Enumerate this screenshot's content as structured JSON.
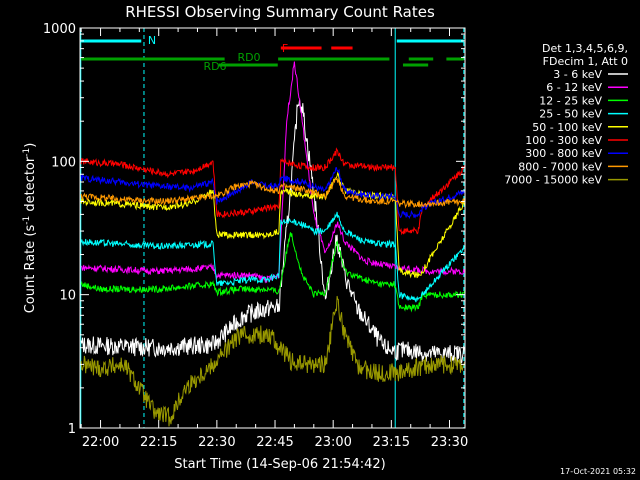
{
  "chart_data": {
    "type": "line",
    "title": "RHESSI Observing Summary Count Rates",
    "xlabel": "Start Time (14-Sep-06 21:54:42)",
    "ylabel_main": "Count Rate (s",
    "ylabel_sup1": "-1",
    "ylabel_mid": " detector",
    "ylabel_sup2": "-1",
    "ylabel_end": ")",
    "y_scale": "log",
    "ylim": [
      1,
      1000
    ],
    "xlim_min": [
      1314.7,
      1414.0
    ],
    "x_ticks": [
      {
        "min": 1320,
        "label": "22:00"
      },
      {
        "min": 1335,
        "label": "22:15"
      },
      {
        "min": 1350,
        "label": "22:30"
      },
      {
        "min": 1365,
        "label": "22:45"
      },
      {
        "min": 1380,
        "label": "23:00"
      },
      {
        "min": 1395,
        "label": "23:15"
      },
      {
        "min": 1410,
        "label": "23:30"
      }
    ],
    "y_ticks": [
      {
        "value": 1,
        "label": "1"
      },
      {
        "value": 10,
        "label": "10"
      },
      {
        "value": 100,
        "label": "100"
      },
      {
        "value": 1000,
        "label": "1000"
      }
    ],
    "legend_position": "right",
    "legend_header": [
      "Det 1,3,4,5,6,9,",
      "FDecim 1, Att 0"
    ],
    "footer_date": "17-Oct-2021 05:32",
    "flags": [
      {
        "label": "N",
        "color": "#00ffff"
      },
      {
        "label": "RD0",
        "color": "#00a000"
      },
      {
        "label": "RD6",
        "color": "#00a000"
      },
      {
        "label": "F",
        "color": "#ff0000"
      }
    ],
    "night_boundaries_min": [
      1314.9,
      1331.2,
      1396.0,
      1413.7
    ],
    "series": [
      {
        "name": "3 - 6 keV",
        "color": "#ffffff",
        "points": [
          [
            1315,
            4.2
          ],
          [
            1335,
            4.0
          ],
          [
            1349,
            4.2
          ],
          [
            1357,
            7.0
          ],
          [
            1364,
            8.0
          ],
          [
            1366,
            8.0
          ],
          [
            1369,
            60
          ],
          [
            1371,
            300
          ],
          [
            1372,
            260
          ],
          [
            1375,
            60
          ],
          [
            1378,
            9
          ],
          [
            1380,
            20
          ],
          [
            1381,
            26
          ],
          [
            1383,
            14
          ],
          [
            1386,
            8
          ],
          [
            1389,
            6
          ],
          [
            1393,
            4
          ],
          [
            1396,
            3.8
          ],
          [
            1400,
            3.8
          ],
          [
            1405,
            3.6
          ],
          [
            1414,
            3.6
          ]
        ]
      },
      {
        "name": "6 - 12 keV",
        "color": "#ff00ff",
        "points": [
          [
            1315,
            16
          ],
          [
            1335,
            15
          ],
          [
            1349,
            16
          ],
          [
            1350,
            14
          ],
          [
            1359,
            14
          ],
          [
            1363,
            13
          ],
          [
            1366,
            14
          ],
          [
            1368,
            200
          ],
          [
            1370,
            560
          ],
          [
            1372,
            200
          ],
          [
            1375,
            40
          ],
          [
            1378,
            20
          ],
          [
            1380,
            28
          ],
          [
            1381,
            35
          ],
          [
            1383,
            25
          ],
          [
            1388,
            18
          ],
          [
            1392,
            17
          ],
          [
            1396,
            16
          ],
          [
            1405,
            15
          ],
          [
            1414,
            15
          ]
        ]
      },
      {
        "name": "12 - 25 keV",
        "color": "#00ff00",
        "points": [
          [
            1315,
            12
          ],
          [
            1320,
            11
          ],
          [
            1335,
            11
          ],
          [
            1349,
            12
          ],
          [
            1350,
            10.5
          ],
          [
            1356,
            11
          ],
          [
            1363,
            11
          ],
          [
            1366,
            10.5
          ],
          [
            1369,
            30
          ],
          [
            1372,
            14
          ],
          [
            1375,
            10
          ],
          [
            1378,
            10.5
          ],
          [
            1381,
            25
          ],
          [
            1383,
            15
          ],
          [
            1388,
            13
          ],
          [
            1392,
            12
          ],
          [
            1396,
            12
          ],
          [
            1397,
            8
          ],
          [
            1402,
            8
          ],
          [
            1403,
            10
          ],
          [
            1414,
            10
          ]
        ]
      },
      {
        "name": "25 - 50 keV",
        "color": "#00ffff",
        "points": [
          [
            1315,
            25
          ],
          [
            1335,
            23
          ],
          [
            1349,
            24
          ],
          [
            1350,
            12
          ],
          [
            1359,
            13
          ],
          [
            1363,
            13
          ],
          [
            1366,
            14
          ],
          [
            1366.5,
            35
          ],
          [
            1371,
            35
          ],
          [
            1375,
            30
          ],
          [
            1378,
            30
          ],
          [
            1381,
            40
          ],
          [
            1383,
            30
          ],
          [
            1388,
            25
          ],
          [
            1392,
            24
          ],
          [
            1396,
            24
          ],
          [
            1397,
            10
          ],
          [
            1402,
            9
          ],
          [
            1403,
            10
          ],
          [
            1414,
            23
          ]
        ]
      },
      {
        "name": "50 - 100 keV",
        "color": "#ffff00",
        "points": [
          [
            1315,
            50
          ],
          [
            1325,
            48
          ],
          [
            1335,
            45
          ],
          [
            1343,
            48
          ],
          [
            1349,
            60
          ],
          [
            1350,
            28
          ],
          [
            1359,
            28
          ],
          [
            1363,
            28
          ],
          [
            1366,
            30
          ],
          [
            1366.5,
            60
          ],
          [
            1374,
            55
          ],
          [
            1378,
            55
          ],
          [
            1381,
            80
          ],
          [
            1383,
            60
          ],
          [
            1390,
            55
          ],
          [
            1396,
            55
          ],
          [
            1397,
            15
          ],
          [
            1402,
            14
          ],
          [
            1403,
            15
          ],
          [
            1414,
            50
          ]
        ]
      },
      {
        "name": "100 - 300 keV",
        "color": "#ff0000",
        "points": [
          [
            1315,
            100
          ],
          [
            1325,
            95
          ],
          [
            1333,
            85
          ],
          [
            1338,
            80
          ],
          [
            1344,
            85
          ],
          [
            1349,
            100
          ],
          [
            1350,
            40
          ],
          [
            1359,
            42
          ],
          [
            1363,
            45
          ],
          [
            1366,
            45
          ],
          [
            1366.5,
            100
          ],
          [
            1374,
            90
          ],
          [
            1378,
            90
          ],
          [
            1381,
            120
          ],
          [
            1383,
            95
          ],
          [
            1390,
            90
          ],
          [
            1396,
            90
          ],
          [
            1397,
            30
          ],
          [
            1402,
            30
          ],
          [
            1403,
            45
          ],
          [
            1414,
            90
          ]
        ]
      },
      {
        "name": "300 - 800 keV",
        "color": "#0000ff",
        "points": [
          [
            1315,
            75
          ],
          [
            1325,
            70
          ],
          [
            1335,
            65
          ],
          [
            1343,
            63
          ],
          [
            1349,
            70
          ],
          [
            1350,
            50
          ],
          [
            1355,
            60
          ],
          [
            1359,
            70
          ],
          [
            1363,
            65
          ],
          [
            1366,
            65
          ],
          [
            1366.5,
            75
          ],
          [
            1372,
            70
          ],
          [
            1378,
            60
          ],
          [
            1381,
            90
          ],
          [
            1383,
            60
          ],
          [
            1390,
            55
          ],
          [
            1396,
            55
          ],
          [
            1397,
            40
          ],
          [
            1402,
            40
          ],
          [
            1403,
            45
          ],
          [
            1414,
            60
          ]
        ]
      },
      {
        "name": "800 - 7000 keV",
        "color": "#ff9900",
        "points": [
          [
            1315,
            55
          ],
          [
            1325,
            52
          ],
          [
            1335,
            50
          ],
          [
            1343,
            52
          ],
          [
            1349,
            55
          ],
          [
            1350,
            55
          ],
          [
            1355,
            65
          ],
          [
            1359,
            68
          ],
          [
            1363,
            62
          ],
          [
            1366,
            60
          ],
          [
            1366.5,
            65
          ],
          [
            1372,
            62
          ],
          [
            1378,
            55
          ],
          [
            1381,
            75
          ],
          [
            1383,
            55
          ],
          [
            1390,
            50
          ],
          [
            1396,
            50
          ],
          [
            1397,
            48
          ],
          [
            1402,
            48
          ],
          [
            1403,
            48
          ],
          [
            1414,
            50
          ]
        ]
      },
      {
        "name": "7000 - 15000 keV",
        "color": "#999900",
        "points": [
          [
            1315,
            3.0
          ],
          [
            1320,
            2.8
          ],
          [
            1326,
            3.0
          ],
          [
            1330,
            2.0
          ],
          [
            1334,
            1.3
          ],
          [
            1338,
            1.2
          ],
          [
            1342,
            2.0
          ],
          [
            1349,
            3.0
          ],
          [
            1356,
            5.0
          ],
          [
            1364,
            5.0
          ],
          [
            1366,
            4.0
          ],
          [
            1370,
            3.0
          ],
          [
            1375,
            3.0
          ],
          [
            1378,
            3.0
          ],
          [
            1381,
            9
          ],
          [
            1383,
            5
          ],
          [
            1386,
            3
          ],
          [
            1390,
            2.6
          ],
          [
            1396,
            2.6
          ],
          [
            1405,
            3.0
          ],
          [
            1414,
            3.0
          ]
        ]
      }
    ]
  }
}
